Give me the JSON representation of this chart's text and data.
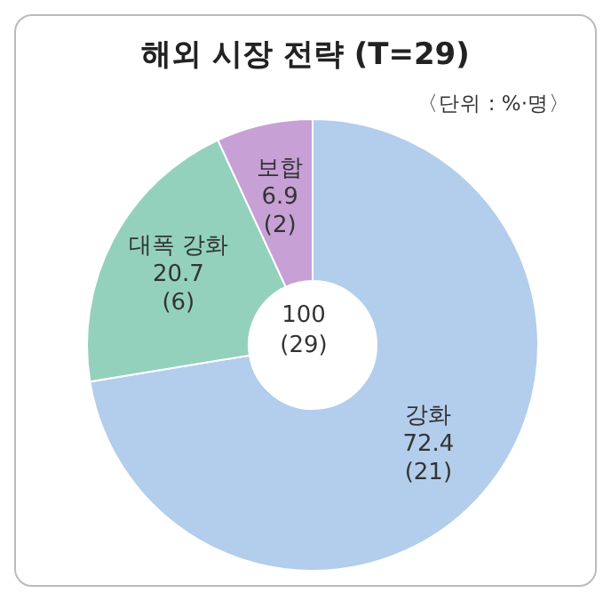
{
  "chart_data": {
    "type": "donut",
    "title": "해외 시장 전략 (T=29)",
    "subtitle": "〈단위 : %·명〉",
    "categories": [
      "강화",
      "대폭 강화",
      "보합"
    ],
    "values": [
      72.4,
      20.7,
      6.9
    ],
    "colors": [
      "#b3cdec",
      "#93d1bd",
      "#c7a0d6"
    ],
    "value_labels": [
      "72.4 (21)",
      "20.7 (6)",
      "6.9 (2)"
    ],
    "annotations": [
      "100 (29)"
    ],
    "legend": false
  }
}
